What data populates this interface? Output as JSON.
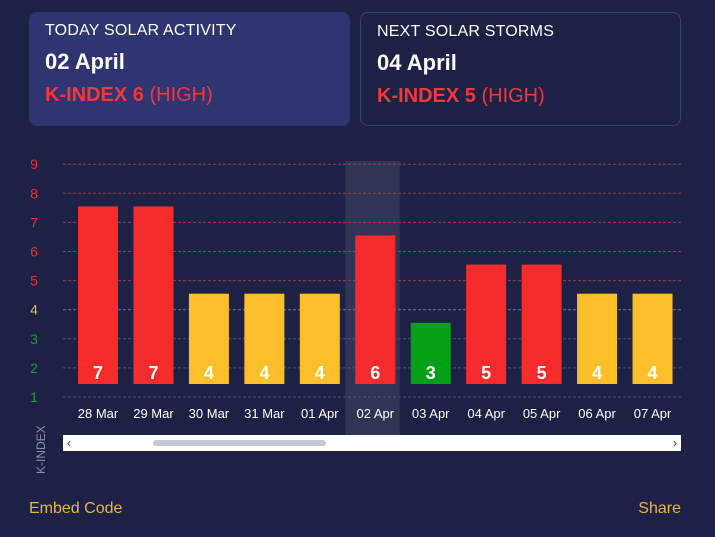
{
  "today": {
    "label": "TODAY SOLAR ACTIVITY",
    "date": "02 April",
    "kindex_label": "K-INDEX 6",
    "level": "(HIGH)"
  },
  "next": {
    "label": "NEXT SOLAR STORMS",
    "date": "04 April",
    "kindex_label": "K-INDEX 5",
    "level": "(HIGH)"
  },
  "chart_data": {
    "type": "bar",
    "categories": [
      "28 Mar",
      "29 Mar",
      "30 Mar",
      "31 Mar",
      "01 Apr",
      "02 Apr",
      "03 Apr",
      "04 Apr",
      "05 Apr",
      "06 Apr",
      "07 Apr"
    ],
    "values": [
      7,
      7,
      4,
      4,
      4,
      6,
      3,
      5,
      5,
      4,
      4
    ],
    "ylabel": "K-INDEX",
    "yticks": [
      1,
      2,
      3,
      4,
      5,
      6,
      7,
      8,
      9
    ],
    "ylim": [
      1,
      9
    ],
    "highlighted_category": "02 Apr",
    "grid": true,
    "colors": {
      "low": "#05a017",
      "moderate": "#fbbf2b",
      "high": "#f62c2c",
      "tick_high": "#f62c2c",
      "tick_moderate": "#f0b43c",
      "tick_low": "#1c9c3c"
    }
  },
  "scrollbar": {
    "left_arrow": "‹",
    "right_arrow": "›"
  },
  "footer": {
    "embed": "Embed Code",
    "share": "Share"
  }
}
